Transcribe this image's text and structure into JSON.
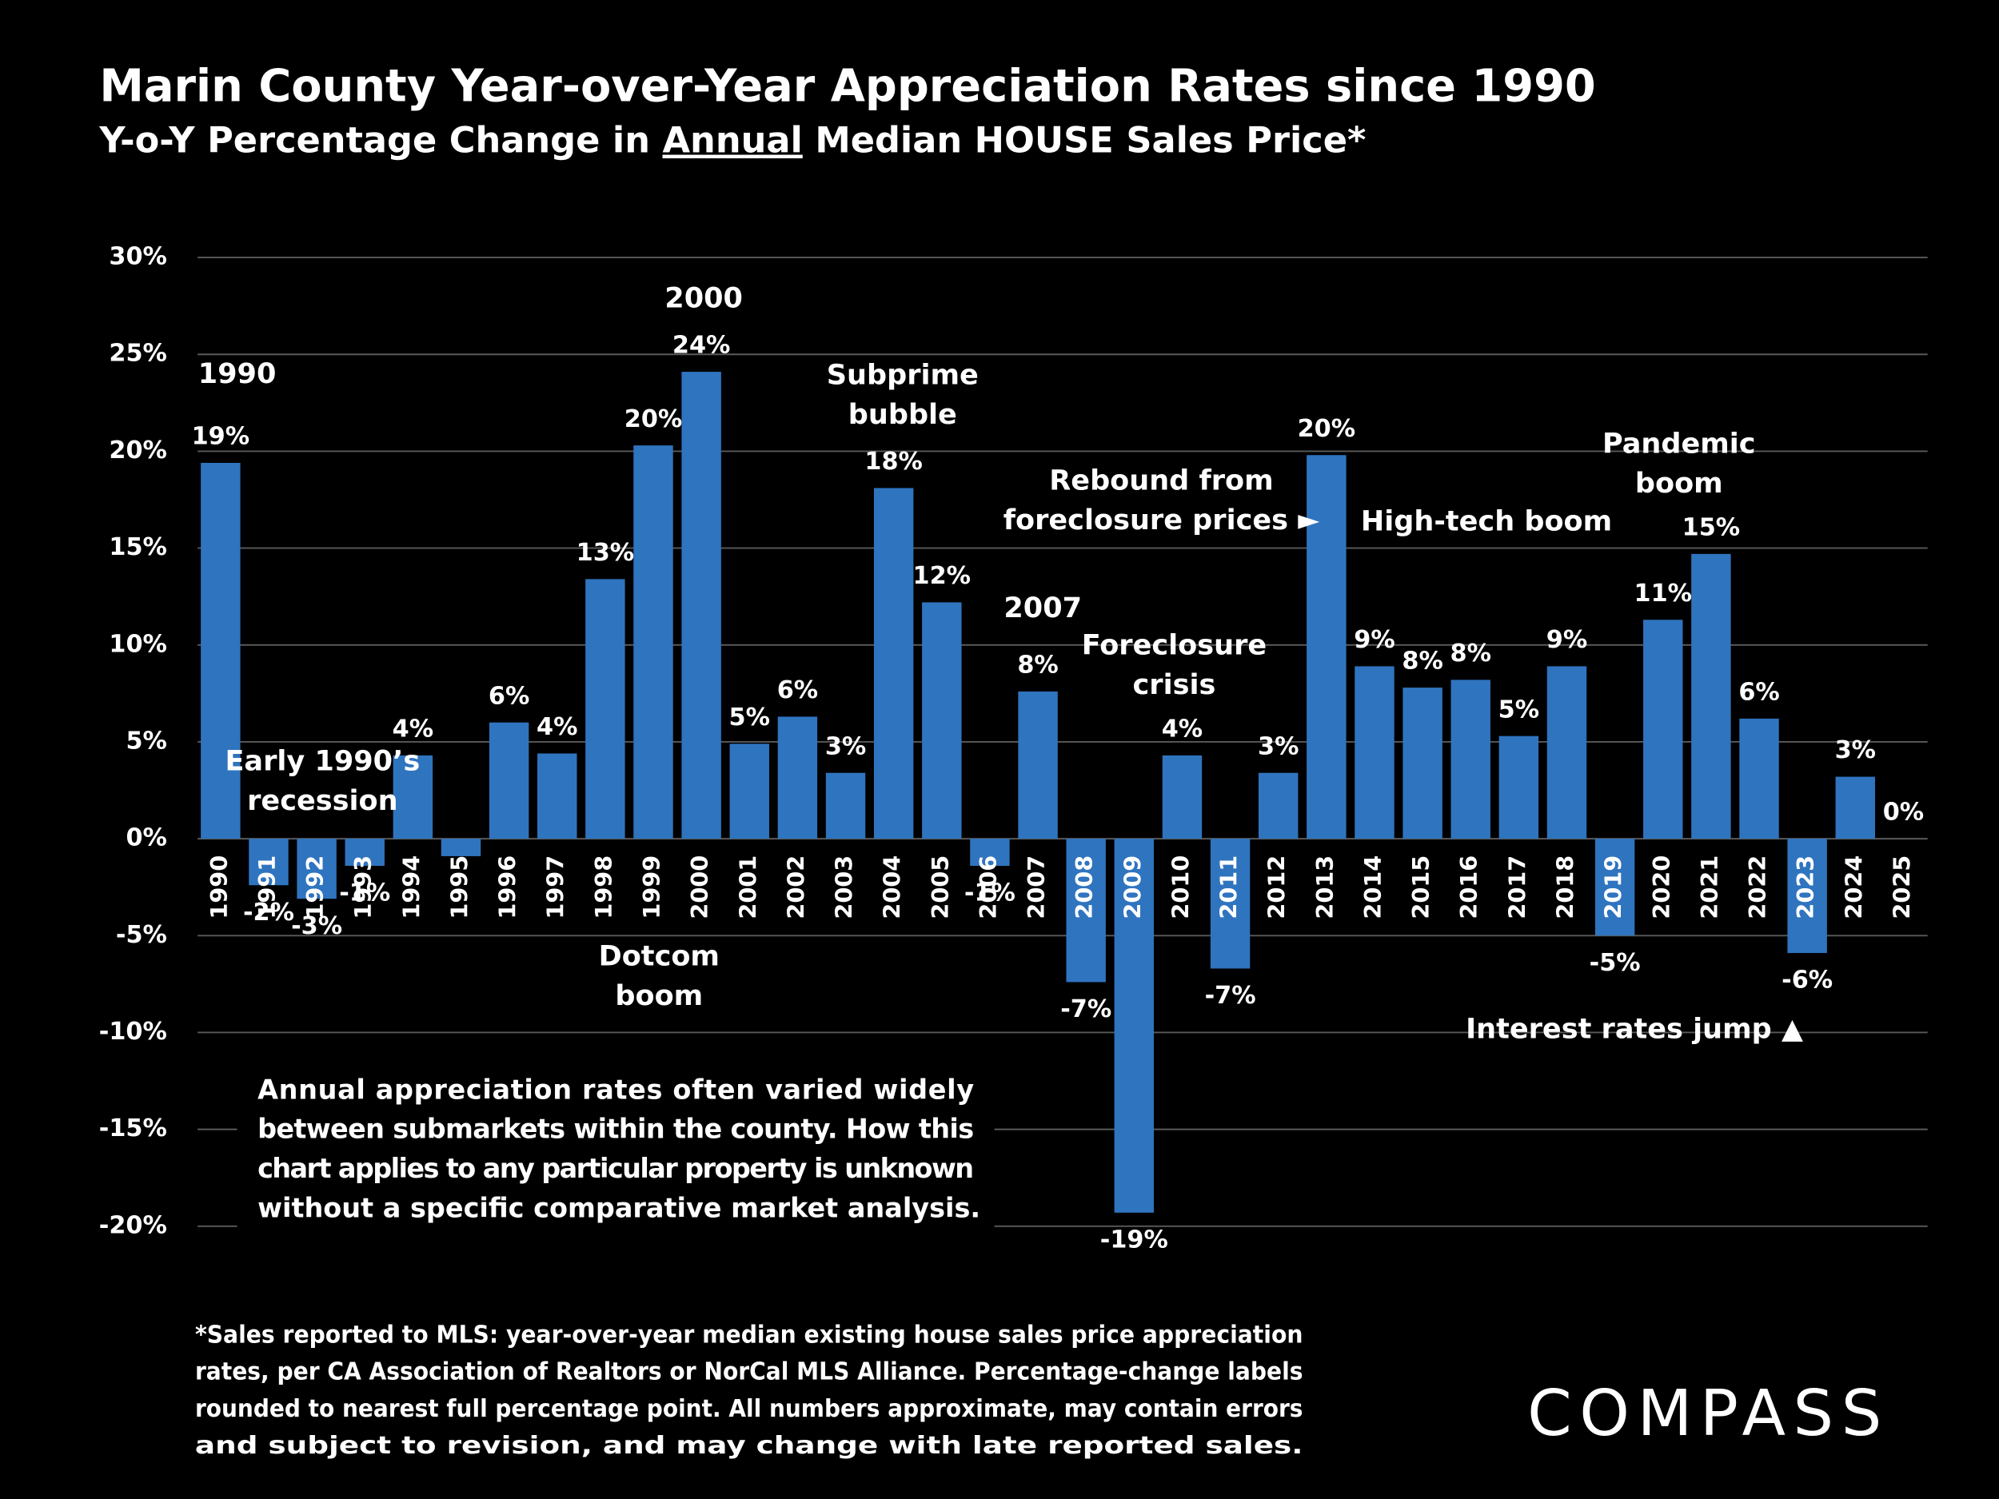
{
  "chart_data": {
    "type": "bar",
    "title": "Marin County Year-over-Year Appreciation Rates since 1990",
    "subtitle": [
      "Y-o-Y Percentage Change in ",
      "Annual",
      " Median HOUSE Sales Price*"
    ],
    "categories": [
      "1990",
      "1991",
      "1992",
      "1993",
      "1994",
      "1995",
      "1996",
      "1997",
      "1998",
      "1999",
      "2000",
      "2001",
      "2002",
      "2003",
      "2004",
      "2005",
      "2006",
      "2007",
      "2008",
      "2009",
      "2010",
      "2011",
      "2012",
      "2013",
      "2014",
      "2015",
      "2016",
      "2017",
      "2018",
      "2019",
      "2020",
      "2021",
      "2022",
      "2023",
      "2024",
      "2025"
    ],
    "values": [
      19.4,
      -2.4,
      -3.1,
      -1.4,
      4.3,
      -0.9,
      6.0,
      4.4,
      13.4,
      20.3,
      24.1,
      4.9,
      6.3,
      3.4,
      18.1,
      12.2,
      -1.4,
      7.6,
      -7.4,
      -19.3,
      4.3,
      -6.7,
      3.4,
      19.8,
      8.9,
      7.8,
      8.2,
      5.3,
      8.9,
      -5.0,
      11.3,
      14.7,
      6.2,
      -5.9,
      3.2,
      0
    ],
    "value_labels": [
      "19%",
      "-2%",
      "-3%",
      "-1%",
      "4%",
      null,
      "6%",
      "4%",
      "13%",
      "20%",
      "24%",
      "5%",
      "6%",
      "3%",
      "18%",
      "12%",
      "-1%",
      "8%",
      "-7%",
      "-19%",
      "4%",
      "-7%",
      "3%",
      "20%",
      "9%",
      "8%",
      "8%",
      "5%",
      "9%",
      "-5%",
      "11%",
      "15%",
      "6%",
      "-6%",
      "3%",
      "0%"
    ],
    "color": "#2f74bf",
    "ylim": [
      -20,
      30
    ],
    "yticks": [
      {
        "value": -20,
        "label": "-20%"
      },
      {
        "value": -15,
        "label": "-15%"
      },
      {
        "value": -10,
        "label": "-10%"
      },
      {
        "value": -5,
        "label": "-5%"
      },
      {
        "value": 0,
        "label": "0%"
      },
      {
        "value": 5,
        "label": "5%"
      },
      {
        "value": 10,
        "label": "10%"
      },
      {
        "value": 15,
        "label": "15%"
      },
      {
        "value": 20,
        "label": "20%"
      },
      {
        "value": 25,
        "label": "25%"
      },
      {
        "value": 30,
        "label": "30%"
      }
    ],
    "grid": true,
    "annotations": [
      {
        "lines": [
          "1990"
        ]
      },
      {
        "lines": [
          "2000"
        ]
      },
      {
        "lines": [
          "Subprime",
          "bubble"
        ]
      },
      {
        "lines": [
          "2007"
        ]
      },
      {
        "lines": [
          "Rebound from",
          "foreclosure prices ►"
        ]
      },
      {
        "lines": [
          "Foreclosure",
          "crisis"
        ]
      },
      {
        "lines": [
          "High-tech boom"
        ]
      },
      {
        "lines": [
          "Pandemic",
          "boom"
        ]
      },
      {
        "lines": [
          "Early 1990’s",
          "recession"
        ]
      },
      {
        "lines": [
          "Dotcom",
          "boom"
        ]
      },
      {
        "lines": [
          "Interest rates jump ▲"
        ]
      }
    ],
    "note": [
      "Annual appreciation rates often varied widely",
      "between submarkets within the county. How this",
      "chart applies to any particular property is unknown",
      "without a specific comparative market analysis."
    ],
    "footnote": [
      "*Sales reported to MLS: year-over-year median existing house sales price appreciation",
      "rates, per CA Association of Realtors or NorCal MLS Alliance. Percentage-change labels",
      "rounded to nearest full percentage point. All numbers approximate, may contain errors",
      "and subject to revision, and may change with late reported sales."
    ],
    "logo": "COMPASS"
  }
}
